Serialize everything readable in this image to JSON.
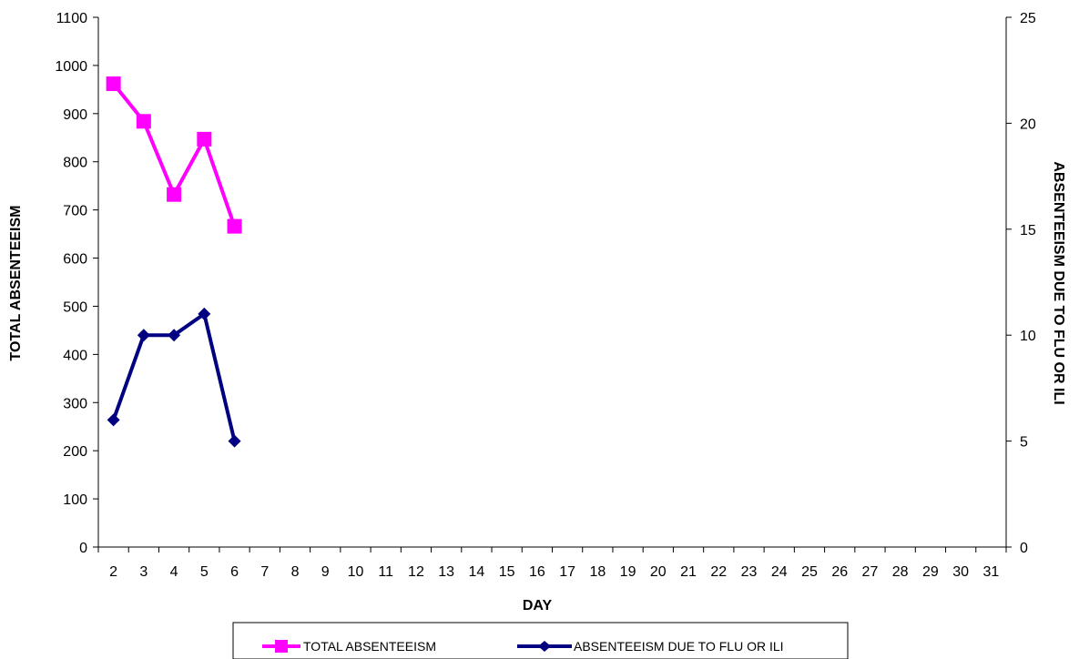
{
  "chart_data": {
    "type": "line",
    "x": [
      2,
      3,
      4,
      5,
      6
    ],
    "categories": [
      "2",
      "3",
      "4",
      "5",
      "6",
      "7",
      "8",
      "9",
      "10",
      "11",
      "12",
      "13",
      "14",
      "15",
      "16",
      "17",
      "18",
      "19",
      "20",
      "21",
      "22",
      "23",
      "24",
      "25",
      "26",
      "27",
      "28",
      "29",
      "30",
      "31"
    ],
    "series": [
      {
        "name": "TOTAL ABSENTEEISM",
        "axis": "left",
        "color": "#FF00FF",
        "marker": "square",
        "values": [
          962,
          884,
          732,
          847,
          666
        ]
      },
      {
        "name": "ABSENTEEISM DUE TO FLU OR ILI",
        "axis": "right",
        "color": "#000080",
        "marker": "diamond",
        "values": [
          6,
          10,
          10,
          11,
          5
        ]
      }
    ],
    "xlabel": "DAY",
    "ylabel": "TOTAL ABSENTEEISM",
    "y2label": "ABSENTEEISM DUE TO FLU OR ILI",
    "ylim": [
      0,
      1100
    ],
    "y2lim": [
      0,
      25
    ],
    "yticks": [
      "0",
      "100",
      "200",
      "300",
      "400",
      "500",
      "600",
      "700",
      "800",
      "900",
      "1000",
      "1100"
    ],
    "y2ticks": [
      "0",
      "5",
      "10",
      "15",
      "20",
      "25"
    ],
    "grid": false,
    "legend": "bottom"
  }
}
